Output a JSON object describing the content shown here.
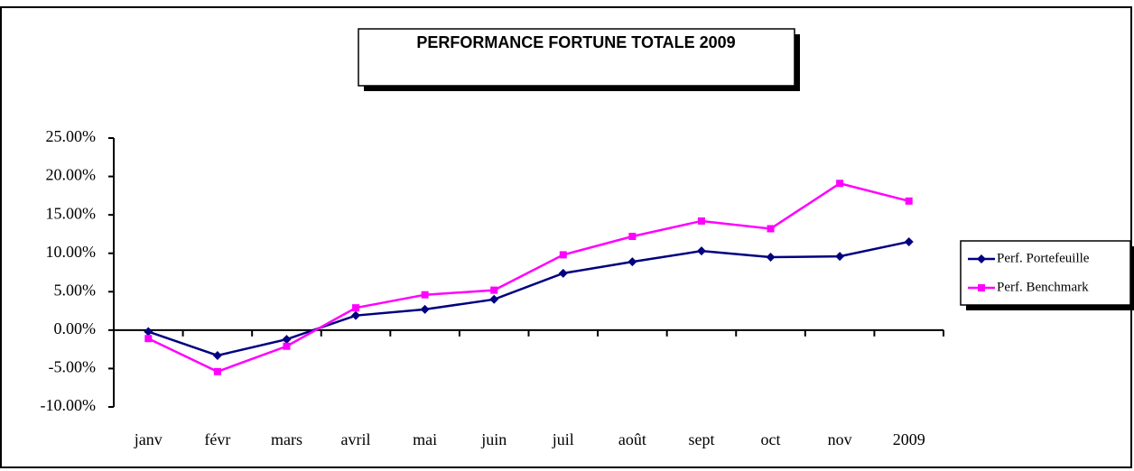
{
  "chart_data": {
    "type": "line",
    "title": "PERFORMANCE FORTUNE TOTALE  2009",
    "categories": [
      "janv",
      "févr",
      "mars",
      "avril",
      "mai",
      "juin",
      "juil",
      "août",
      "sept",
      "oct",
      "nov",
      "2009"
    ],
    "series": [
      {
        "name": "Perf. Portefeuille",
        "color": "#000080",
        "marker": "diamond",
        "values": [
          -0.2,
          -3.3,
          -1.2,
          1.9,
          2.7,
          4.0,
          7.4,
          8.9,
          10.3,
          9.5,
          9.6,
          11.5
        ]
      },
      {
        "name": "Perf. Benchmark",
        "color": "#ff00ff",
        "marker": "square",
        "values": [
          -1.1,
          -5.4,
          -2.1,
          2.9,
          4.6,
          5.2,
          9.8,
          12.2,
          14.2,
          13.2,
          19.1,
          16.8
        ]
      }
    ],
    "ylim": [
      -10,
      25
    ],
    "yticks": [
      {
        "value": -10,
        "label": "-10.00%"
      },
      {
        "value": -5,
        "label": "-5.00%"
      },
      {
        "value": 0,
        "label": "0.00%"
      },
      {
        "value": 5,
        "label": "5.00%"
      },
      {
        "value": 10,
        "label": "10.00%"
      },
      {
        "value": 15,
        "label": "15.00%"
      },
      {
        "value": 20,
        "label": "20.00%"
      },
      {
        "value": 25,
        "label": "25.00%"
      }
    ],
    "grid": false,
    "legend": "right"
  }
}
